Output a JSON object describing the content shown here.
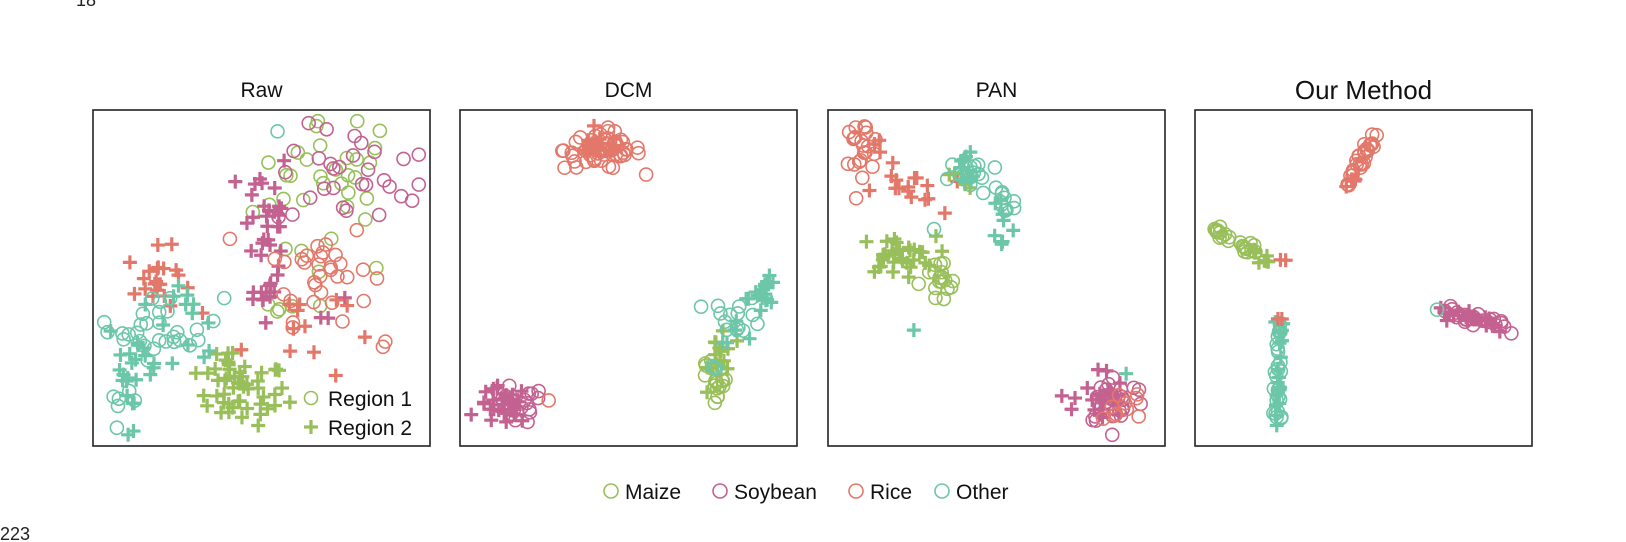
{
  "page": {
    "top_left_number": "18",
    "bottom_left_number": "223"
  },
  "legend": {
    "classes": [
      {
        "key": "maize",
        "label": "Maize",
        "color": "#98bf5a"
      },
      {
        "key": "soybean",
        "label": "Soybean",
        "color": "#c36190"
      },
      {
        "key": "rice",
        "label": "Rice",
        "color": "#e3786a"
      },
      {
        "key": "other",
        "label": "Other",
        "color": "#6cc6a8"
      }
    ],
    "regions": [
      {
        "key": "region1",
        "label": "Region 1",
        "marker": "circle"
      },
      {
        "key": "region2",
        "label": "Region 2",
        "marker": "plus"
      }
    ]
  },
  "chart_data": [
    {
      "type": "scatter",
      "title": "Raw",
      "xlabel": "",
      "ylabel": "",
      "grid": false,
      "axes_ticks": false,
      "legend_position": "bottom-right",
      "xlim": [
        0,
        100
      ],
      "ylim": [
        0,
        100
      ],
      "series": [
        {
          "class": "maize",
          "region": "region1",
          "cx": 72,
          "cy": 78,
          "sx": 12,
          "sy": 14,
          "n": 34
        },
        {
          "class": "maize",
          "region": "region1",
          "cx": 58,
          "cy": 42,
          "sx": 3,
          "sy": 3,
          "n": 4
        },
        {
          "class": "maize",
          "region": "region2",
          "cx": 44,
          "cy": 14,
          "sx": 7,
          "sy": 5,
          "n": 45
        },
        {
          "class": "maize",
          "region": "region2",
          "cx": 35,
          "cy": 24,
          "sx": 4,
          "sy": 3,
          "n": 6
        },
        {
          "class": "soybean",
          "region": "region1",
          "cx": 80,
          "cy": 81,
          "sx": 13,
          "sy": 8,
          "n": 30
        },
        {
          "class": "soybean",
          "region": "region2",
          "cx": 51,
          "cy": 63,
          "sx": 4,
          "sy": 16,
          "n": 38
        },
        {
          "class": "soybean",
          "region": "region2",
          "cx": 75,
          "cy": 41,
          "sx": 3,
          "sy": 4,
          "n": 3
        },
        {
          "class": "rice",
          "region": "region1",
          "cx": 68,
          "cy": 53,
          "sx": 8,
          "sy": 8,
          "n": 32
        },
        {
          "class": "rice",
          "region": "region1",
          "cx": 88,
          "cy": 29,
          "sx": 1,
          "sy": 1,
          "n": 2
        },
        {
          "class": "rice",
          "region": "region2",
          "cx": 18,
          "cy": 49,
          "sx": 5,
          "sy": 5,
          "n": 22
        },
        {
          "class": "rice",
          "region": "region2",
          "cx": 60,
          "cy": 34,
          "sx": 8,
          "sy": 9,
          "n": 12
        },
        {
          "class": "other",
          "region": "region1",
          "cx": 20,
          "cy": 35,
          "sx": 9,
          "sy": 5,
          "n": 30
        },
        {
          "class": "other",
          "region": "region1",
          "cx": 7,
          "cy": 10,
          "sx": 2,
          "sy": 2,
          "n": 6
        },
        {
          "class": "other",
          "region": "region1",
          "cx": 54,
          "cy": 96,
          "sx": 1,
          "sy": 1,
          "n": 1
        },
        {
          "class": "other",
          "region": "region2",
          "cx": 10,
          "cy": 22,
          "sx": 4,
          "sy": 9,
          "n": 24
        },
        {
          "class": "other",
          "region": "region2",
          "cx": 28,
          "cy": 36,
          "sx": 6,
          "sy": 6,
          "n": 12
        }
      ]
    },
    {
      "type": "scatter",
      "title": "DCM",
      "xlabel": "",
      "ylabel": "",
      "grid": false,
      "axes_ticks": false,
      "xlim": [
        0,
        100
      ],
      "ylim": [
        0,
        100
      ],
      "series": [
        {
          "class": "rice",
          "region": "region1",
          "cx": 42,
          "cy": 90,
          "sx": 6,
          "sy": 3,
          "n": 60
        },
        {
          "class": "rice",
          "region": "region2",
          "cx": 41,
          "cy": 91,
          "sx": 4,
          "sy": 2,
          "n": 14
        },
        {
          "class": "soybean",
          "region": "region1",
          "cx": 14,
          "cy": 10,
          "sx": 5,
          "sy": 3,
          "n": 22
        },
        {
          "class": "soybean",
          "region": "region2",
          "cx": 11,
          "cy": 10,
          "sx": 4,
          "sy": 3,
          "n": 28
        },
        {
          "class": "rice",
          "region": "region1",
          "cx": 24,
          "cy": 12,
          "sx": 1,
          "sy": 1,
          "n": 1
        },
        {
          "class": "maize",
          "region": "region1",
          "cx": 78,
          "cy": 14,
          "sx": 1.5,
          "sy": 3,
          "n": 14
        },
        {
          "class": "maize",
          "region": "region2",
          "cx": 79,
          "cy": 27,
          "sx": 2,
          "sy": 5,
          "n": 16
        },
        {
          "class": "maize",
          "region": "region1",
          "cx": 76,
          "cy": 23,
          "sx": 2,
          "sy": 2,
          "n": 6
        },
        {
          "class": "other",
          "region": "region1",
          "cx": 84,
          "cy": 38,
          "sx": 4,
          "sy": 3,
          "n": 14
        },
        {
          "class": "other",
          "region": "region1",
          "cx": 76,
          "cy": 22,
          "sx": 1,
          "sy": 1,
          "n": 3
        },
        {
          "class": "other",
          "region": "region2",
          "cx": 93,
          "cy": 46,
          "sx": 1.5,
          "sy": 2,
          "n": 16
        },
        {
          "class": "other",
          "region": "region2",
          "cx": 86,
          "cy": 38,
          "sx": 4,
          "sy": 4,
          "n": 8
        }
      ]
    },
    {
      "type": "scatter",
      "title": "PAN",
      "xlabel": "",
      "ylabel": "",
      "grid": false,
      "axes_ticks": false,
      "xlim": [
        0,
        100
      ],
      "ylim": [
        0,
        100
      ],
      "series": [
        {
          "class": "rice",
          "region": "region1",
          "cx": 8,
          "cy": 91,
          "sx": 3,
          "sy": 4,
          "n": 22
        },
        {
          "class": "rice",
          "region": "region2",
          "cx": 12,
          "cy": 93,
          "sx": 2,
          "sy": 2,
          "n": 3
        },
        {
          "class": "rice",
          "region": "region2",
          "cx": 22,
          "cy": 77,
          "sx": 5,
          "sy": 4,
          "n": 16
        },
        {
          "class": "maize",
          "region": "region2",
          "cx": 19,
          "cy": 57,
          "sx": 6,
          "sy": 3,
          "n": 32
        },
        {
          "class": "maize",
          "region": "region1",
          "cx": 32,
          "cy": 48,
          "sx": 3,
          "sy": 4,
          "n": 18
        },
        {
          "class": "maize",
          "region": "region2",
          "cx": 38,
          "cy": 80,
          "sx": 2,
          "sy": 2,
          "n": 4
        },
        {
          "class": "other",
          "region": "region1",
          "cx": 43,
          "cy": 82,
          "sx": 4,
          "sy": 3,
          "n": 16
        },
        {
          "class": "other",
          "region": "region1",
          "cx": 52,
          "cy": 74,
          "sx": 2,
          "sy": 5,
          "n": 10
        },
        {
          "class": "other",
          "region": "region2",
          "cx": 41,
          "cy": 84,
          "sx": 2,
          "sy": 4,
          "n": 10
        },
        {
          "class": "other",
          "region": "region2",
          "cx": 52,
          "cy": 68,
          "sx": 1.5,
          "sy": 5,
          "n": 8
        },
        {
          "class": "other",
          "region": "region1",
          "cx": 30,
          "cy": 65,
          "sx": 1,
          "sy": 1,
          "n": 1
        },
        {
          "class": "other",
          "region": "region2",
          "cx": 24,
          "cy": 34,
          "sx": 0.5,
          "sy": 0.5,
          "n": 1
        },
        {
          "class": "soybean",
          "region": "region1",
          "cx": 87,
          "cy": 12,
          "sx": 5,
          "sy": 4,
          "n": 30
        },
        {
          "class": "soybean",
          "region": "region2",
          "cx": 82,
          "cy": 12,
          "sx": 4,
          "sy": 5,
          "n": 22
        },
        {
          "class": "rice",
          "region": "region1",
          "cx": 90,
          "cy": 11,
          "sx": 4,
          "sy": 3,
          "n": 10
        },
        {
          "class": "other",
          "region": "region2",
          "cx": 88,
          "cy": 20,
          "sx": 1,
          "sy": 1,
          "n": 1
        }
      ]
    },
    {
      "type": "scatter",
      "title": "Our Method",
      "xlabel": "",
      "ylabel": "",
      "grid": false,
      "axes_ticks": false,
      "xlim": [
        0,
        100
      ],
      "ylim": [
        0,
        100
      ],
      "series": [
        {
          "class": "rice",
          "region": "region1",
          "line": [
            [
              45,
              80
            ],
            [
              54,
              95
            ]
          ],
          "spread": 0.9,
          "n": 28
        },
        {
          "class": "rice",
          "region": "region2",
          "line": [
            [
              44,
              78
            ],
            [
              47,
              82
            ]
          ],
          "spread": 1,
          "n": 5
        },
        {
          "class": "maize",
          "region": "region1",
          "line": [
            [
              4,
              65
            ],
            [
              18,
              56
            ]
          ],
          "spread": 1,
          "n": 22
        },
        {
          "class": "maize",
          "region": "region2",
          "line": [
            [
              14,
              58
            ],
            [
              21,
              55
            ]
          ],
          "spread": 1,
          "n": 8
        },
        {
          "class": "rice",
          "region": "region2",
          "line": [
            [
              24,
              55
            ],
            [
              25,
              55
            ]
          ],
          "spread": 0.5,
          "n": 2
        },
        {
          "class": "soybean",
          "region": "region1",
          "line": [
            [
              75,
              40
            ],
            [
              97,
              34
            ]
          ],
          "spread": 1,
          "n": 22
        },
        {
          "class": "soybean",
          "region": "region2",
          "line": [
            [
              73,
              40
            ],
            [
              92,
              35
            ]
          ],
          "spread": 1,
          "n": 20
        },
        {
          "class": "other",
          "region": "region1",
          "line": [
            [
              24,
              37
            ],
            [
              23,
              6
            ]
          ],
          "spread": 0.6,
          "n": 26
        },
        {
          "class": "other",
          "region": "region2",
          "line": [
            [
              24,
              38
            ],
            [
              23,
              4
            ]
          ],
          "spread": 0.6,
          "n": 18
        },
        {
          "class": "other",
          "region": "region1",
          "line": [
            [
              73,
              40
            ],
            [
              74,
              40
            ]
          ],
          "spread": 0.3,
          "n": 1
        },
        {
          "class": "rice",
          "region": "region2",
          "line": [
            [
              24,
              37
            ],
            [
              24,
              36
            ]
          ],
          "spread": 0.4,
          "n": 2
        }
      ]
    }
  ]
}
